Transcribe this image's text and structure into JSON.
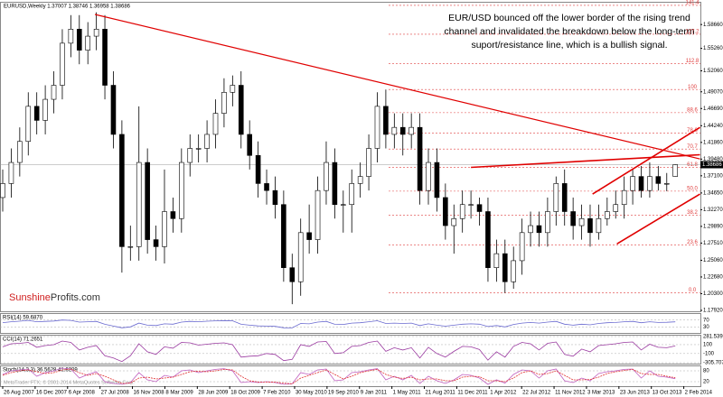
{
  "chart_data": {
    "type": "candlestick",
    "title": "EURUSD,Weekly  1.37007 1.38746 1.36958 1.38686",
    "annotation": [
      "EUR/USD bounced off the lower border of the rising trend",
      "channel and invalidated the breakdown below the long-term",
      "suport/resistance line, which is a bullish signal."
    ],
    "logo": [
      "Sunshine",
      "Profits.com"
    ],
    "footer": "MetaTrader FTX, © 2001-2014 MetaQuotes Software Corp.",
    "x": [
      0,
      4.2,
      8.4,
      12.6,
      16.8,
      21,
      25.2,
      29.4,
      33.6,
      37.8,
      42,
      46.2,
      50.4,
      54.6,
      58.8,
      63,
      67.2,
      71.4,
      75.6,
      79.8,
      84,
      88.2,
      92.4,
      96.6,
      100.8,
      105,
      109.2,
      113.4,
      117.6,
      121.8,
      126,
      130.2,
      134.4,
      138.6,
      142.8,
      147,
      151.2,
      155.4,
      159.6,
      163.8,
      168,
      172.2,
      176.4,
      180.6,
      184.8,
      189,
      193.2,
      197.4,
      201.6,
      205.8,
      210,
      214.2,
      218.4,
      222.6,
      226.8,
      231,
      235.2,
      239.4,
      243.6,
      247.8,
      252,
      256.2,
      260.4,
      264.6,
      268.8,
      273,
      277.2,
      281.4,
      285.6,
      289.8,
      294,
      298.2,
      302.4,
      306.6,
      310.8,
      315,
      319.2,
      323.4,
      327.6,
      331.8
    ],
    "open": [
      1.34,
      1.36,
      1.39,
      1.42,
      1.47,
      1.45,
      1.48,
      1.5,
      1.56,
      1.58,
      1.55,
      1.57,
      1.58,
      1.5,
      1.43,
      1.27,
      1.27,
      1.39,
      1.28,
      1.27,
      1.32,
      1.31,
      1.39,
      1.41,
      1.41,
      1.43,
      1.46,
      1.49,
      1.5,
      1.43,
      1.4,
      1.36,
      1.35,
      1.33,
      1.24,
      1.22,
      1.29,
      1.28,
      1.35,
      1.39,
      1.33,
      1.33,
      1.36,
      1.37,
      1.41,
      1.47,
      1.43,
      1.44,
      1.43,
      1.44,
      1.35,
      1.39,
      1.34,
      1.3,
      1.31,
      1.33,
      1.33,
      1.32,
      1.24,
      1.26,
      1.22,
      1.25,
      1.29,
      1.3,
      1.29,
      1.32,
      1.36,
      1.32,
      1.3,
      1.31,
      1.29,
      1.31,
      1.32,
      1.33,
      1.35,
      1.37,
      1.35,
      1.37,
      1.36,
      1.37007
    ],
    "high": [
      1.38,
      1.41,
      1.44,
      1.49,
      1.49,
      1.5,
      1.52,
      1.58,
      1.6,
      1.6,
      1.59,
      1.604,
      1.6,
      1.52,
      1.45,
      1.3,
      1.47,
      1.41,
      1.3,
      1.38,
      1.34,
      1.41,
      1.43,
      1.43,
      1.45,
      1.48,
      1.51,
      1.514,
      1.52,
      1.45,
      1.42,
      1.38,
      1.37,
      1.35,
      1.26,
      1.31,
      1.33,
      1.37,
      1.42,
      1.41,
      1.35,
      1.38,
      1.39,
      1.43,
      1.49,
      1.494,
      1.46,
      1.46,
      1.46,
      1.46,
      1.41,
      1.41,
      1.36,
      1.33,
      1.35,
      1.35,
      1.34,
      1.34,
      1.28,
      1.28,
      1.27,
      1.31,
      1.32,
      1.32,
      1.34,
      1.37,
      1.38,
      1.34,
      1.33,
      1.33,
      1.33,
      1.34,
      1.35,
      1.37,
      1.38,
      1.385,
      1.39,
      1.385,
      1.375,
      1.38746
    ],
    "low": [
      1.32,
      1.34,
      1.37,
      1.4,
      1.43,
      1.43,
      1.46,
      1.48,
      1.54,
      1.53,
      1.53,
      1.55,
      1.48,
      1.41,
      1.233,
      1.25,
      1.25,
      1.26,
      1.25,
      1.246,
      1.29,
      1.29,
      1.37,
      1.39,
      1.39,
      1.41,
      1.44,
      1.47,
      1.41,
      1.38,
      1.34,
      1.33,
      1.31,
      1.22,
      1.188,
      1.2,
      1.26,
      1.26,
      1.33,
      1.31,
      1.29,
      1.29,
      1.34,
      1.35,
      1.39,
      1.41,
      1.41,
      1.4,
      1.41,
      1.33,
      1.33,
      1.32,
      1.28,
      1.26,
      1.29,
      1.31,
      1.3,
      1.22,
      1.22,
      1.204,
      1.21,
      1.23,
      1.27,
      1.27,
      1.27,
      1.3,
      1.3,
      1.28,
      1.28,
      1.27,
      1.28,
      1.3,
      1.31,
      1.31,
      1.33,
      1.34,
      1.34,
      1.35,
      1.349,
      1.36958
    ],
    "close": [
      1.36,
      1.39,
      1.42,
      1.47,
      1.45,
      1.48,
      1.5,
      1.56,
      1.58,
      1.55,
      1.57,
      1.58,
      1.5,
      1.43,
      1.27,
      1.27,
      1.39,
      1.28,
      1.27,
      1.32,
      1.31,
      1.39,
      1.41,
      1.41,
      1.43,
      1.46,
      1.49,
      1.5,
      1.43,
      1.4,
      1.36,
      1.35,
      1.33,
      1.24,
      1.22,
      1.29,
      1.28,
      1.35,
      1.39,
      1.33,
      1.33,
      1.36,
      1.37,
      1.41,
      1.47,
      1.43,
      1.44,
      1.43,
      1.44,
      1.35,
      1.39,
      1.34,
      1.3,
      1.31,
      1.33,
      1.33,
      1.32,
      1.24,
      1.26,
      1.22,
      1.25,
      1.29,
      1.3,
      1.29,
      1.32,
      1.36,
      1.32,
      1.3,
      1.31,
      1.29,
      1.31,
      1.32,
      1.33,
      1.35,
      1.37,
      1.35,
      1.37,
      1.36,
      1.36,
      1.38686
    ],
    "xlim": [
      -1.34,
      344.2
    ],
    "xticks": [
      {
        "value": 0,
        "label": "26 Aug 2007"
      },
      {
        "value": 16,
        "label": "16 Dec 2007"
      },
      {
        "value": 32,
        "label": "6 Apr 2008"
      },
      {
        "value": 48,
        "label": "27 Jul 2008"
      },
      {
        "value": 64,
        "label": "16 Nov 2008"
      },
      {
        "value": 80,
        "label": "8 Mar 2009"
      },
      {
        "value": 96,
        "label": "28 Jun 2009"
      },
      {
        "value": 112,
        "label": "18 Oct 2009"
      },
      {
        "value": 128,
        "label": "7 Feb 2010"
      },
      {
        "value": 144,
        "label": "30 May 2010"
      },
      {
        "value": 160,
        "label": "19 Sep 2010"
      },
      {
        "value": 176,
        "label": "9 Jan 2011"
      },
      {
        "value": 192,
        "label": "1 May 2011"
      },
      {
        "value": 208,
        "label": "21 Aug 2011"
      },
      {
        "value": 224,
        "label": "11 Dec 2011"
      },
      {
        "value": 240,
        "label": "1 Apr 2012"
      },
      {
        "value": 256,
        "label": "22 Jul 2012"
      },
      {
        "value": 272,
        "label": "11 Nov 2012"
      },
      {
        "value": 288,
        "label": "3 Mar 2013"
      },
      {
        "value": 304,
        "label": "23 Jun 2013"
      },
      {
        "value": 320,
        "label": "13 Oct 2013"
      },
      {
        "value": 336,
        "label": "2 Feb 2014"
      }
    ],
    "ylim": [
      1.1766,
      1.6177
    ],
    "yticks": [
      {
        "value": 1.1792,
        "label": "1.17920"
      },
      {
        "value": 1.203,
        "label": "1.20300"
      },
      {
        "value": 1.2268,
        "label": "1.22680"
      },
      {
        "value": 1.2506,
        "label": "1.25060"
      },
      {
        "value": 1.2751,
        "label": "1.27510"
      },
      {
        "value": 1.2989,
        "label": "1.29890"
      },
      {
        "value": 1.3227,
        "label": "1.32270"
      },
      {
        "value": 1.3465,
        "label": "1.34650"
      },
      {
        "value": 1.371,
        "label": "1.37100"
      },
      {
        "value": 1.3948,
        "label": "1.39480"
      },
      {
        "value": 1.4186,
        "label": "1.41860"
      },
      {
        "value": 1.4424,
        "label": "1.44240"
      },
      {
        "value": 1.4669,
        "label": "1.46690"
      },
      {
        "value": 1.4907,
        "label": "1.49070"
      },
      {
        "value": 1.5206,
        "label": "1.52060"
      },
      {
        "value": 1.5526,
        "label": "1.55260"
      },
      {
        "value": 1.5866,
        "label": "1.58660"
      }
    ],
    "current_price": 1.38686,
    "fib_low": 1.2042,
    "fib_high": 1.494,
    "fib_levels": [
      141.4,
      127.2,
      112.8,
      100,
      88.6,
      78.6,
      70.7,
      61.8,
      {
        "value": 50,
        "label": "50.0"
      },
      38.2,
      23.6,
      {
        "value": 0,
        "label": "0.0"
      }
    ],
    "trend_lines": [
      {
        "start": [
          45.5,
          1.601
        ],
        "end": [
          344,
          1.395
        ]
      },
      {
        "start": [
          231,
          1.383
        ],
        "end": [
          344,
          1.401
        ]
      },
      {
        "start": [
          291,
          1.345
        ],
        "end": [
          344,
          1.44
        ]
      },
      {
        "start": [
          303,
          1.274
        ],
        "end": [
          344,
          1.345
        ]
      }
    ],
    "candle_colors": {
      "up": "#ffffff",
      "down": "#000000",
      "outline": "#000000"
    },
    "line_color": "#e00000",
    "fib_color": "#e04040",
    "indicators": [
      {
        "title": "RSI(14) 59.6870",
        "ylim": [
          0,
          100
        ],
        "yticks": [
          70,
          30
        ],
        "series": [
          {
            "color": "#6a6ad0",
            "values": [
              55,
              60,
              63,
              68,
              60,
              62,
              64,
              70,
              68,
              58,
              60,
              62,
              45,
              35,
              25,
              30,
              52,
              40,
              38,
              48,
              46,
              58,
              62,
              60,
              63,
              65,
              67,
              66,
              45,
              40,
              36,
              35,
              33,
              25,
              24,
              50,
              48,
              58,
              62,
              45,
              44,
              52,
              54,
              60,
              66,
              50,
              52,
              50,
              52,
              38,
              48,
              40,
              34,
              40,
              46,
              48,
              46,
              32,
              38,
              30,
              44,
              52,
              56,
              52,
              58,
              62,
              46,
              40,
              46,
              42,
              50,
              54,
              56,
              60,
              62,
              54,
              60,
              56,
              57,
              59.687
            ]
          }
        ]
      },
      {
        "title": "CCI(14) 71.2651",
        "ylim": [
          -305.7075,
          281.5396
        ],
        "yticks": [
          281.5396,
          100,
          -100,
          -305.7075
        ],
        "series": [
          {
            "color": "#9a3aa0",
            "values": [
              50,
              120,
              130,
              150,
              40,
              80,
              100,
              180,
              150,
              -20,
              40,
              80,
              -150,
              -200,
              -280,
              -150,
              120,
              -60,
              -120,
              50,
              20,
              150,
              140,
              90,
              110,
              130,
              140,
              100,
              -180,
              -160,
              -150,
              -100,
              -120,
              -260,
              -230,
              100,
              60,
              160,
              170,
              -100,
              -80,
              60,
              80,
              150,
              180,
              -50,
              30,
              -20,
              30,
              -200,
              40,
              -100,
              -180,
              -50,
              60,
              50,
              -10,
              -250,
              -60,
              -180,
              60,
              150,
              120,
              -20,
              130,
              160,
              -120,
              -160,
              0,
              -60,
              80,
              100,
              120,
              150,
              160,
              -20,
              110,
              40,
              30,
              71.2651
            ]
          }
        ]
      },
      {
        "title": "Stoch(14,3,3) 36.5628 41.6209",
        "ylim": [
          0,
          100
        ],
        "yticks": [
          80,
          20
        ],
        "series": [
          {
            "color": "#c060c0",
            "values": [
              60,
              80,
              85,
              90,
              50,
              70,
              80,
              95,
              90,
              40,
              60,
              75,
              20,
              10,
              5,
              15,
              70,
              30,
              20,
              55,
              45,
              80,
              85,
              70,
              80,
              88,
              92,
              80,
              15,
              20,
              15,
              20,
              15,
              5,
              8,
              70,
              60,
              85,
              90,
              25,
              30,
              70,
              75,
              85,
              92,
              30,
              50,
              30,
              55,
              10,
              50,
              25,
              10,
              30,
              60,
              55,
              40,
              5,
              30,
              12,
              60,
              85,
              80,
              40,
              80,
              90,
              25,
              15,
              40,
              25,
              65,
              75,
              80,
              88,
              90,
              40,
              80,
              50,
              45,
              36.5628
            ]
          },
          {
            "color": "#e03030",
            "values": [
              55,
              70,
              80,
              85,
              75,
              65,
              70,
              85,
              90,
              70,
              55,
              65,
              50,
              30,
              10,
              12,
              40,
              45,
              35,
              40,
              45,
              60,
              75,
              78,
              75,
              80,
              88,
              85,
              50,
              25,
              18,
              18,
              17,
              12,
              8,
              40,
              55,
              70,
              85,
              60,
              35,
              50,
              70,
              80,
              88,
              60,
              45,
              38,
              45,
              30,
              35,
              35,
              25,
              25,
              45,
              50,
              48,
              25,
              25,
              20,
              40,
              70,
              80,
              60,
              65,
              80,
              55,
              30,
              30,
              32,
              45,
              65,
              75,
              82,
              88,
              65,
              60,
              60,
              50,
              41.6209
            ]
          }
        ]
      }
    ]
  }
}
